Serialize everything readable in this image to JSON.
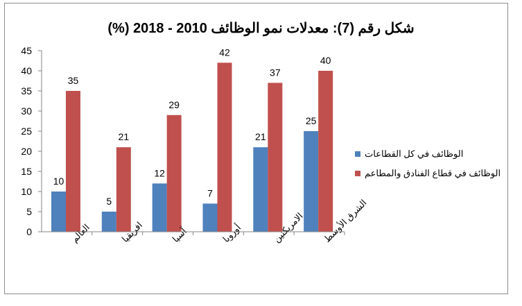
{
  "chart_data": {
    "type": "bar",
    "title": "شكل رقم (7): معدلات نمو الوظائف 2010 - 2018 (%)",
    "categories": [
      "العالم",
      "افريقيا",
      "آسيا",
      "أوروبا",
      "الامريكتين",
      "الشرق الأوسط"
    ],
    "series": [
      {
        "name": "الوظائف في كل القطاعات",
        "values": [
          10,
          5,
          12,
          7,
          21,
          25
        ],
        "color": "#4f81bd"
      },
      {
        "name": "الوظائف في قطاع الفنادق والمطاعم",
        "values": [
          35,
          21,
          29,
          42,
          37,
          40
        ],
        "color": "#c0504d"
      }
    ],
    "ylim": [
      0,
      45
    ],
    "yticks": [
      0,
      5,
      10,
      15,
      20,
      25,
      30,
      35,
      40,
      45
    ],
    "grid": false,
    "legend": "right",
    "xlabel": "",
    "ylabel": ""
  }
}
